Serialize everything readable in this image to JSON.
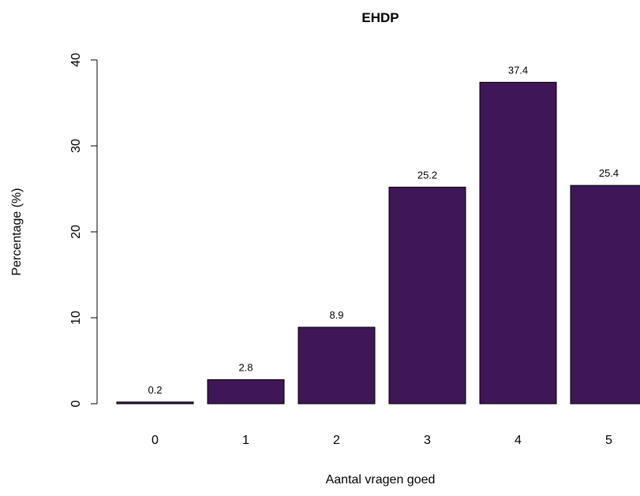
{
  "chart_data": {
    "type": "bar",
    "title": "EHDP",
    "xlabel": "Aantal vragen goed",
    "ylabel": "Percentage (%)",
    "categories": [
      "0",
      "1",
      "2",
      "3",
      "4",
      "5"
    ],
    "values": [
      0.2,
      2.8,
      8.9,
      25.2,
      37.4,
      25.4
    ],
    "data_labels": [
      "0.2",
      "2.8",
      "8.9",
      "25.2",
      "37.4",
      "25.4"
    ],
    "ylim": [
      0,
      40
    ],
    "yticks": [
      "0",
      "10",
      "20",
      "30",
      "40"
    ],
    "grid": false,
    "legend": "none",
    "bar_color": "#3F1658",
    "bar_edge_color": "#000000"
  }
}
